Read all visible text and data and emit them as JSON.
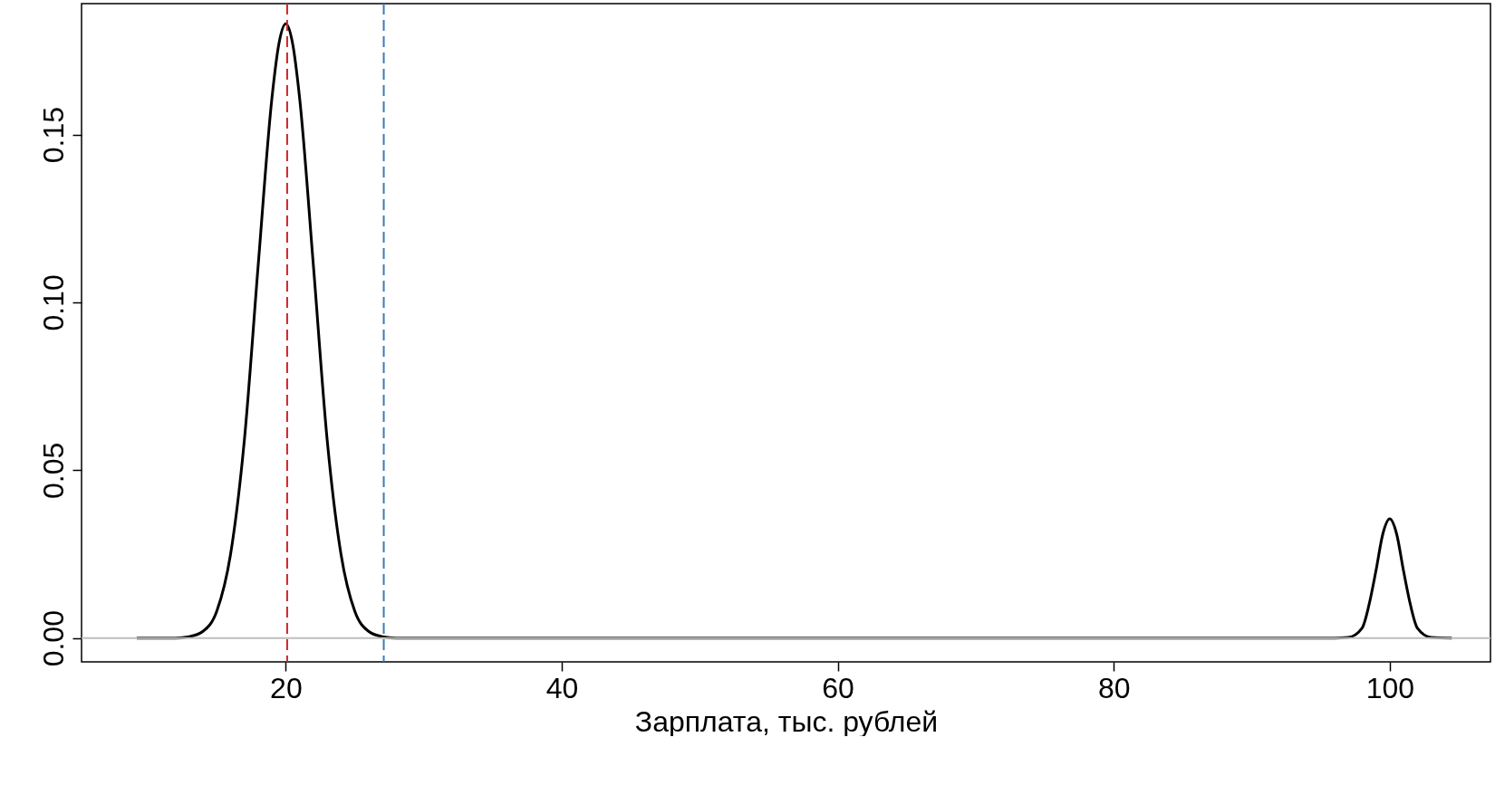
{
  "chart_data": {
    "type": "line",
    "xlabel": "Зарплата, тыс. рублей",
    "series": [
      {
        "color": "#000000",
        "x": [
          9.2,
          12,
          13,
          14,
          15,
          16,
          17,
          18,
          19,
          19.5,
          20,
          20.5,
          21,
          22,
          23,
          24,
          25,
          26,
          27,
          28,
          60,
          96,
          97,
          98,
          98.5,
          99,
          99.5,
          100,
          100.5,
          101,
          101.5,
          102,
          103,
          104.5
        ],
        "values": [
          0,
          0,
          0.0004,
          0.002,
          0.008,
          0.025,
          0.059,
          0.111,
          0.161,
          0.177,
          0.183,
          0.177,
          0.161,
          0.111,
          0.059,
          0.025,
          0.008,
          0.002,
          0.0004,
          0,
          0,
          0,
          0.0002,
          0.003,
          0.0099,
          0.02,
          0.031,
          0.0355,
          0.031,
          0.02,
          0.0099,
          0.003,
          0.0002,
          0
        ]
      }
    ],
    "xlim": [
      5.2,
      107.3
    ],
    "xticks": [
      20,
      40,
      60,
      80,
      100
    ],
    "ylim": [
      -0.0071,
      0.189
    ],
    "yticks": [
      {
        "value": 0,
        "label": "0.00"
      },
      {
        "value": 0.05,
        "label": "0.05"
      },
      {
        "value": 0.1,
        "label": "0.10"
      },
      {
        "value": 0.15,
        "label": "0.15"
      }
    ],
    "ref_lines": [
      {
        "axis": "y",
        "value": 0,
        "color": "#bebebe",
        "line_style": "solid"
      },
      {
        "axis": "x",
        "value": 20.1,
        "color": "#cd2626",
        "line_style": "dashed"
      },
      {
        "axis": "x",
        "value": 27.1,
        "color": "#3a7bbf",
        "line_style": "dashed"
      }
    ],
    "grid": false,
    "marker": "none",
    "line_style": "solid"
  }
}
